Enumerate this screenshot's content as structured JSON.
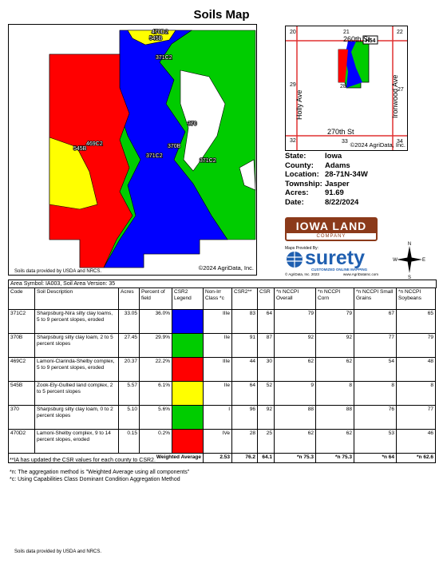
{
  "title": "Soils Map",
  "map": {
    "labels": [
      "470D2",
      "545B",
      "371C2",
      "370",
      "469C2",
      "545B",
      "371C2",
      "370B",
      "371C2"
    ],
    "copyright": "©2024 AgriData, Inc."
  },
  "inset": {
    "sections": [
      "20",
      "21",
      "22",
      "29",
      "28",
      "27",
      "32",
      "33",
      "34"
    ],
    "north_road": "260th St",
    "south_road": "270th St",
    "west_road": "Holly Ave",
    "east_road": "Ironwood Ave",
    "highway": "H54",
    "copyright": "©2024 AgriData, Inc."
  },
  "location_info": [
    {
      "label": "State:",
      "value": "Iowa"
    },
    {
      "label": "County:",
      "value": "Adams"
    },
    {
      "label": "Location:",
      "value": "28-71N-34W"
    },
    {
      "label": "Township:",
      "value": "Jasper"
    },
    {
      "label": "Acres:",
      "value": "91.69"
    },
    {
      "label": "Date:",
      "value": "8/22/2024"
    }
  ],
  "logos": {
    "company_main": "IOWA LAND",
    "company_sub": "COMPANY",
    "provided_by": "Maps Provided By:",
    "brand": "surety",
    "brand_tagline": "CUSTOMIZED ONLINE MAPPING",
    "brand_copyright": "© AgriData, Inc. 2023",
    "brand_url": "www.AgriDataInc.com"
  },
  "compass": {
    "n": "N",
    "e": "E",
    "s": "S",
    "w": "W"
  },
  "map_source": "Soils data provided by USDA and NRCS.",
  "table": {
    "area": "Area Symbol: IA003, Soil Area Version: 35",
    "headers": [
      "Code",
      "Soil Description",
      "Acres",
      "Percent of field",
      "CSR2 Legend",
      "Non-Irr Class *c",
      "CSR2**",
      "CSR",
      "*n NCCPI Overall",
      "*n NCCPI Corn",
      "*n NCCPI Small Grains",
      "*n NCCPI Soybeans"
    ],
    "rows": [
      {
        "cells": [
          "371C2",
          "Sharpsburg-Nira silty clay loams, 5 to 9 percent slopes, eroded",
          "33.05",
          "36.0%",
          "IIIe",
          "83",
          "64",
          "79",
          "79",
          "67",
          "65"
        ],
        "legend_color": "#0000ff"
      },
      {
        "cells": [
          "370B",
          "Sharpsburg silty clay loam, 2 to 5 percent slopes",
          "27.45",
          "29.9%",
          "IIe",
          "91",
          "87",
          "92",
          "92",
          "77",
          "79"
        ],
        "legend_color": "#00cc00"
      },
      {
        "cells": [
          "469C2",
          "Lamoni-Clarinda-Shelby complex, 5 to 9 percent slopes, eroded",
          "20.37",
          "22.2%",
          "IIIe",
          "44",
          "30",
          "62",
          "62",
          "54",
          "48"
        ],
        "legend_color": "#ff0000"
      },
      {
        "cells": [
          "545B",
          "Zook-Ely-Gullied land complex, 2 to 5 percent slopes",
          "5.57",
          "6.1%",
          "IIe",
          "64",
          "52",
          "9",
          "8",
          "8",
          "8"
        ],
        "legend_color": "#ffff00"
      },
      {
        "cells": [
          "370",
          "Sharpsburg silty clay loam, 0 to 2 percent slopes",
          "5.10",
          "5.6%",
          "I",
          "96",
          "92",
          "88",
          "88",
          "76",
          "77"
        ],
        "legend_color": "#00cc00"
      },
      {
        "cells": [
          "470D2",
          "Lamoni-Shelby complex, 9 to 14 percent slopes, eroded",
          "0.15",
          "0.2%",
          "IVe",
          "28",
          "25",
          "62",
          "62",
          "53",
          "46"
        ],
        "legend_color": "#ff0000"
      }
    ],
    "weighted": {
      "label": "Weighted Average",
      "values": [
        "2.53",
        "76.2",
        "64.1",
        "*n 75.3",
        "*n 75.3",
        "*n 64",
        "*n 62.6"
      ]
    }
  },
  "notes": [
    "**IA has updated the CSR values for each county to CSR2.",
    "*n: The aggregation method is \"Weighted Average using all components\"",
    "*c: Using Capabilities Class Dominant Condition Aggregation Method"
  ],
  "footer": "Soils data provided by USDA and NRCS."
}
